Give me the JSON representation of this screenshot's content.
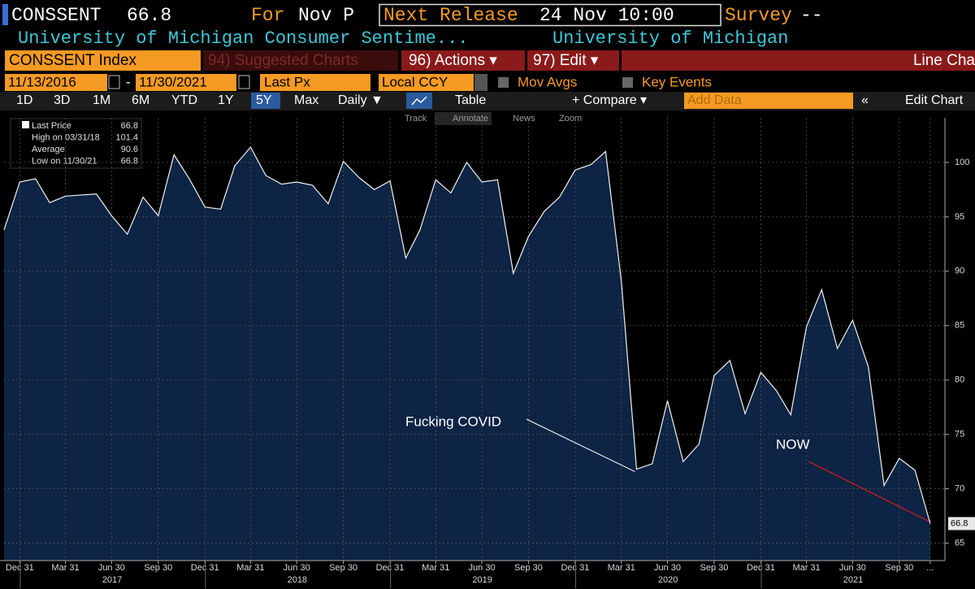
{
  "header": {
    "ticker": "CONSSENT",
    "last": "66.8",
    "for_label": "For",
    "period": "Nov P",
    "release_label": "Next Release",
    "release": "24 Nov 10:00",
    "survey_label": "Survey",
    "survey": "--",
    "description": "University of Michigan Consumer Sentime...",
    "source": "University of Michigan"
  },
  "menu": {
    "security": "CONSSENT Index",
    "suggested": "94) Suggested Charts",
    "actions": "96) Actions ▾",
    "edit": "97) Edit ▾",
    "chart_type": "Line Cha"
  },
  "controls": {
    "start": "11/13/2016",
    "dash": "-",
    "end": "11/30/2021",
    "field": "Last Px",
    "currency": "Local CCY",
    "mov_avgs": "Mov Avgs",
    "key_events": "Key Events"
  },
  "toolbar": {
    "periods": [
      "1D",
      "3D",
      "1M",
      "6M",
      "YTD",
      "1Y",
      "5Y",
      "Max"
    ],
    "frequency": "Daily ▼",
    "table": "Table",
    "compare": "+ Compare ▾",
    "add_data": "Add Data",
    "edit_chart": "Edit Chart"
  },
  "chart_tools": [
    "Track",
    "Annotate",
    "News",
    "Zoom"
  ],
  "stats": [
    {
      "label": "Last Price",
      "value": "66.8"
    },
    {
      "label": "High on 03/31/18",
      "value": "101.4"
    },
    {
      "label": "Average",
      "value": "90.6"
    },
    {
      "label": "Low on 11/30/21",
      "value": "66.8"
    }
  ],
  "chart_data": {
    "type": "area",
    "x": [
      "2016-11-30",
      "2016-12-31",
      "2017-01-31",
      "2017-02-28",
      "2017-03-31",
      "2017-04-30",
      "2017-05-31",
      "2017-06-30",
      "2017-07-31",
      "2017-08-31",
      "2017-09-30",
      "2017-10-31",
      "2017-11-30",
      "2017-12-31",
      "2018-01-31",
      "2018-02-28",
      "2018-03-31",
      "2018-04-30",
      "2018-05-31",
      "2018-06-30",
      "2018-07-31",
      "2018-08-31",
      "2018-09-30",
      "2018-10-31",
      "2018-11-30",
      "2018-12-31",
      "2019-01-31",
      "2019-02-28",
      "2019-03-31",
      "2019-04-30",
      "2019-05-31",
      "2019-06-30",
      "2019-07-31",
      "2019-08-31",
      "2019-09-30",
      "2019-10-31",
      "2019-11-30",
      "2019-12-31",
      "2020-01-31",
      "2020-02-29",
      "2020-03-31",
      "2020-04-30",
      "2020-05-31",
      "2020-06-30",
      "2020-07-31",
      "2020-08-31",
      "2020-09-30",
      "2020-10-31",
      "2020-11-30",
      "2020-12-31",
      "2021-01-31",
      "2021-02-28",
      "2021-03-31",
      "2021-04-30",
      "2021-05-31",
      "2021-06-30",
      "2021-07-31",
      "2021-08-31",
      "2021-09-30",
      "2021-10-31",
      "2021-11-30"
    ],
    "series": [
      {
        "name": "CONSSENT Index",
        "color": "#f2f2f2",
        "fill": "#0e2444",
        "values": [
          93.8,
          98.2,
          98.5,
          96.3,
          96.9,
          97.0,
          97.1,
          95.1,
          93.4,
          96.8,
          95.1,
          100.7,
          98.5,
          95.9,
          95.7,
          99.7,
          101.4,
          98.8,
          98.0,
          98.2,
          97.9,
          96.2,
          100.1,
          98.6,
          97.5,
          98.3,
          91.2,
          93.8,
          98.4,
          97.2,
          100.0,
          98.2,
          98.4,
          89.8,
          93.2,
          95.5,
          96.8,
          99.3,
          99.8,
          101.0,
          89.1,
          71.8,
          72.3,
          78.1,
          72.5,
          74.1,
          80.4,
          81.8,
          76.9,
          80.7,
          79.0,
          76.8,
          84.9,
          88.3,
          82.9,
          85.5,
          81.2,
          70.3,
          72.8,
          71.7,
          66.8
        ]
      }
    ],
    "xlim": [
      "2016-11-30",
      "2021-12-29"
    ],
    "xticks": [
      {
        "value": "2016-12-31",
        "label": "Dec 31"
      },
      {
        "value": "2017-03-31",
        "label": "Mar 31"
      },
      {
        "value": "2017-06-30",
        "label": "Jun 30"
      },
      {
        "value": "2017-09-30",
        "label": "Sep 30"
      },
      {
        "value": "2017-12-31",
        "label": "Dec 31"
      },
      {
        "value": "2018-03-31",
        "label": "Mar 31"
      },
      {
        "value": "2018-06-30",
        "label": "Jun 30"
      },
      {
        "value": "2018-09-30",
        "label": "Sep 30"
      },
      {
        "value": "2018-12-31",
        "label": "Dec 31"
      },
      {
        "value": "2019-03-31",
        "label": "Mar 31"
      },
      {
        "value": "2019-06-30",
        "label": "Jun 30"
      },
      {
        "value": "2019-09-30",
        "label": "Sep 30"
      },
      {
        "value": "2019-12-31",
        "label": "Dec 31"
      },
      {
        "value": "2020-03-31",
        "label": "Mar 31"
      },
      {
        "value": "2020-06-30",
        "label": "Jun 30"
      },
      {
        "value": "2020-09-30",
        "label": "Sep 30"
      },
      {
        "value": "2020-12-31",
        "label": "Dec 31"
      },
      {
        "value": "2021-03-31",
        "label": "Mar 31"
      },
      {
        "value": "2021-06-30",
        "label": "Jun 30"
      },
      {
        "value": "2021-09-30",
        "label": "Sep 30"
      },
      {
        "value": "2021-11-30",
        "label": "..."
      }
    ],
    "years": [
      "2017",
      "2018",
      "2019",
      "2020",
      "2021"
    ],
    "ylim": [
      63.4,
      104.1
    ],
    "yticks": [
      65,
      70,
      75,
      80,
      85,
      90,
      95,
      100
    ],
    "grid": true,
    "annotations": [
      "Fucking COVID",
      "NOW"
    ]
  }
}
